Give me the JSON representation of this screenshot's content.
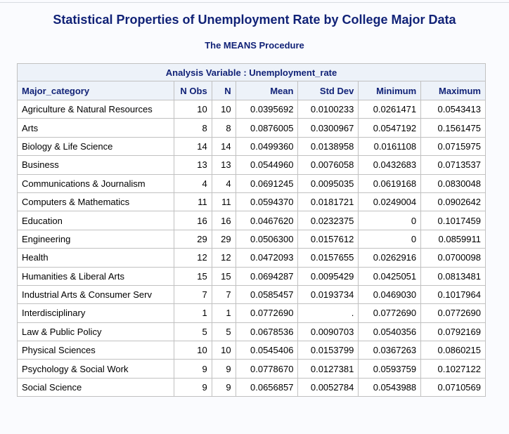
{
  "title": "Statistical Properties of Unemployment Rate by College Major Data",
  "subtitle": "The MEANS Procedure",
  "table": {
    "analysis_variable": "Analysis Variable : Unemployment_rate",
    "columns": [
      "Major_category",
      "N Obs",
      "N",
      "Mean",
      "Std Dev",
      "Minimum",
      "Maximum"
    ],
    "rows": [
      [
        "Agriculture & Natural Resources",
        "10",
        "10",
        "0.0395692",
        "0.0100233",
        "0.0261471",
        "0.0543413"
      ],
      [
        "Arts",
        "8",
        "8",
        "0.0876005",
        "0.0300967",
        "0.0547192",
        "0.1561475"
      ],
      [
        "Biology & Life Science",
        "14",
        "14",
        "0.0499360",
        "0.0138958",
        "0.0161108",
        "0.0715975"
      ],
      [
        "Business",
        "13",
        "13",
        "0.0544960",
        "0.0076058",
        "0.0432683",
        "0.0713537"
      ],
      [
        "Communications & Journalism",
        "4",
        "4",
        "0.0691245",
        "0.0095035",
        "0.0619168",
        "0.0830048"
      ],
      [
        "Computers & Mathematics",
        "11",
        "11",
        "0.0594370",
        "0.0181721",
        "0.0249004",
        "0.0902642"
      ],
      [
        "Education",
        "16",
        "16",
        "0.0467620",
        "0.0232375",
        "0",
        "0.1017459"
      ],
      [
        "Engineering",
        "29",
        "29",
        "0.0506300",
        "0.0157612",
        "0",
        "0.0859911"
      ],
      [
        "Health",
        "12",
        "12",
        "0.0472093",
        "0.0157655",
        "0.0262916",
        "0.0700098"
      ],
      [
        "Humanities & Liberal Arts",
        "15",
        "15",
        "0.0694287",
        "0.0095429",
        "0.0425051",
        "0.0813481"
      ],
      [
        "Industrial Arts & Consumer Serv",
        "7",
        "7",
        "0.0585457",
        "0.0193734",
        "0.0469030",
        "0.1017964"
      ],
      [
        "Interdisciplinary",
        "1",
        "1",
        "0.0772690",
        ".",
        "0.0772690",
        "0.0772690"
      ],
      [
        "Law & Public Policy",
        "5",
        "5",
        "0.0678536",
        "0.0090703",
        "0.0540356",
        "0.0792169"
      ],
      [
        "Physical Sciences",
        "10",
        "10",
        "0.0545406",
        "0.0153799",
        "0.0367263",
        "0.0860215"
      ],
      [
        "Psychology & Social Work",
        "9",
        "9",
        "0.0778670",
        "0.0127381",
        "0.0593759",
        "0.1027122"
      ],
      [
        "Social Science",
        "9",
        "9",
        "0.0656857",
        "0.0052784",
        "0.0543988",
        "0.0710569"
      ]
    ]
  }
}
